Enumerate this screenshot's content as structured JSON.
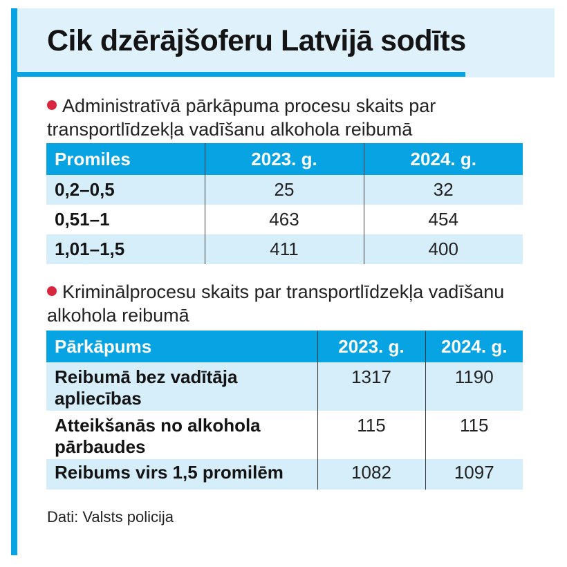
{
  "title": "Cik dzērājšoferu Latvijā sodīts",
  "colors": {
    "accent": "#08a3e2",
    "header_band": "#dff1fb",
    "row_shade": "#d6edfa",
    "bullet": "#d9263f"
  },
  "source": "Dati: Valsts policija",
  "chart_data": [
    {
      "type": "table",
      "title": "Administratīvā pārkāpuma procesu skaits par transportlīdzekļa vadīšanu alkohola reibumā",
      "columns": [
        "Promiles",
        "2023. g.",
        "2024. g."
      ],
      "rows": [
        [
          "0,2–0,5",
          "25",
          "32"
        ],
        [
          "0,51–1",
          "463",
          "454"
        ],
        [
          "1,01–1,5",
          "411",
          "400"
        ]
      ]
    },
    {
      "type": "table",
      "title": "Kriminālprocesu skaits par transportlīdzekļa vadīšanu alkohola reibumā",
      "columns": [
        "Pārkāpums",
        "2023. g.",
        "2024. g."
      ],
      "rows": [
        [
          "Reibumā bez vadītāja apliecības",
          "1317",
          "1190"
        ],
        [
          "Atteikšanās no alkohola pārbaudes",
          "115",
          "115"
        ],
        [
          "Reibums virs 1,5 promilēm",
          "1082",
          "1097"
        ]
      ]
    }
  ]
}
